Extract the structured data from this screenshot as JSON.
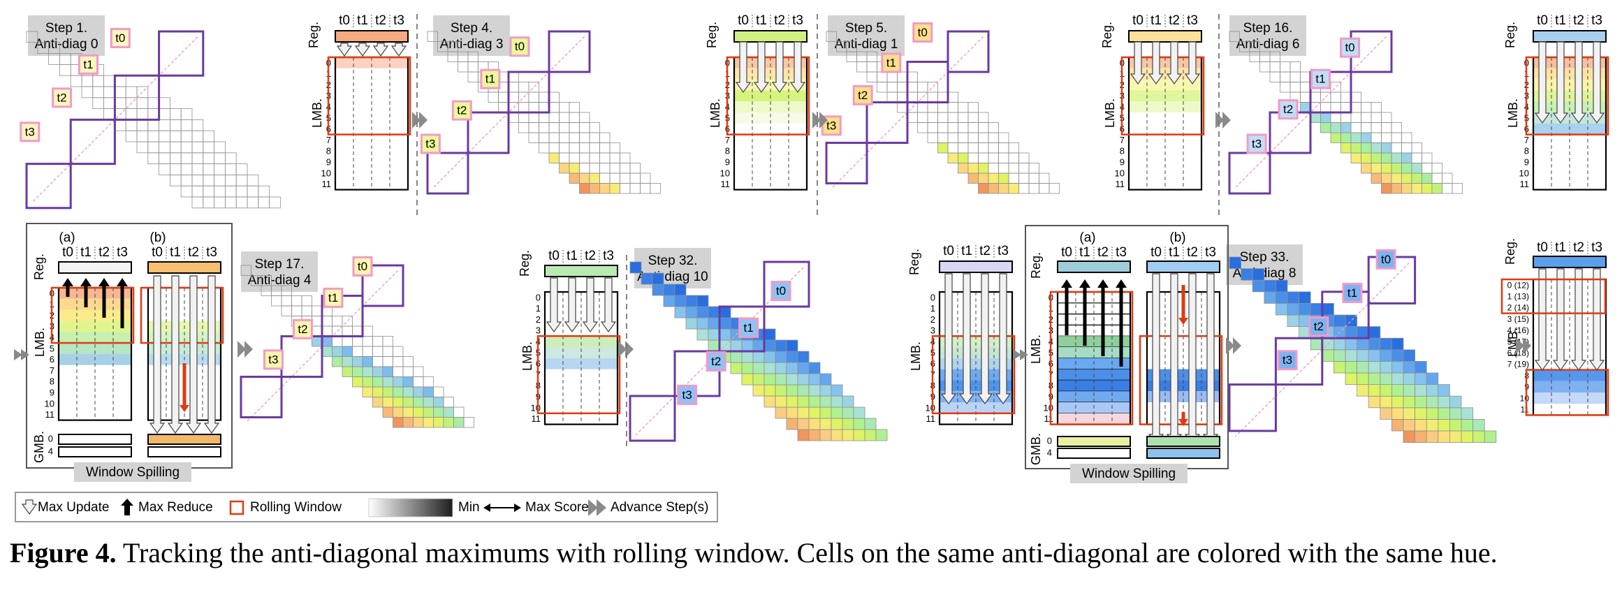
{
  "figure": {
    "steps": [
      {
        "label": "Step 1.",
        "sub": "Anti-diag 0"
      },
      {
        "label": "Step 4.",
        "sub": "Anti-diag 3"
      },
      {
        "label": "Step 5.",
        "sub": "Anti-diag 1"
      },
      {
        "label": "Step 16.",
        "sub": "Anti-diag 6"
      },
      {
        "label": "Step 17.",
        "sub": "Anti-diag 4"
      },
      {
        "label": "Step 32.",
        "sub": "Anti-diag 10"
      },
      {
        "label": "Step 33.",
        "sub": "Anti-diag 8"
      }
    ],
    "threads": [
      "t0",
      "t1",
      "t2",
      "t3"
    ],
    "reg_label": "Reg.",
    "lmb_label": "LMB.",
    "gmb_label": "GMB.",
    "rows_0_11": [
      "0",
      "1",
      "2",
      "3",
      "4",
      "5",
      "6",
      "7",
      "8",
      "9",
      "10",
      "11"
    ],
    "rows_paired": [
      "0 (12)",
      "1 (13)",
      "2 (14)",
      "3 (15)",
      "4 (16)",
      "5 (17)",
      "6 (18)",
      "7 (19)",
      "8",
      "9",
      "10",
      "11"
    ],
    "gmb_rows": [
      "0",
      "4"
    ],
    "panel_a": "(a)",
    "panel_b": "(b)",
    "window_spilling": "Window Spilling",
    "legend": {
      "max_update": "Max Update",
      "max_reduce": "Max Reduce",
      "rolling_window": "Rolling Window",
      "min": "Min",
      "max_score": "Max Score",
      "advance": "Advance Step(s)"
    },
    "colors": {
      "purple": "#6a3aa0",
      "pink": "#f29ac8",
      "red": "#e03a12",
      "gray_box": "#d3d3d3"
    }
  },
  "caption": {
    "label": "Figure 4.",
    "text": "Tracking the anti-diagonal maximums with rolling window. Cells on the same anti-diagonal are colored with the same hue."
  }
}
